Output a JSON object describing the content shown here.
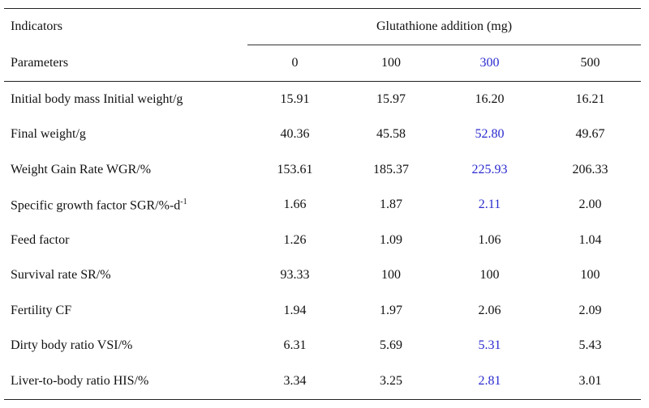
{
  "table": {
    "header": {
      "indicators": "Indicators",
      "group": "Glutathione addition (mg)",
      "parameters": "Parameters",
      "doses": [
        "0",
        "100",
        "300",
        "500"
      ]
    },
    "rows": [
      [
        "Initial body mass Initial weight/g",
        "15.91",
        "15.97",
        "16.20",
        "16.21"
      ],
      [
        "Final weight/g",
        "40.36",
        "45.58",
        "52.80",
        "49.67"
      ],
      [
        "Weight Gain Rate WGR/%",
        "153.61",
        "185.37",
        "225.93",
        "206.33"
      ],
      [
        {
          "text": "Specific growth factor SGR/%-d",
          "sup": "-1"
        },
        "1.66",
        "1.87",
        "2.11",
        "2.00"
      ],
      [
        "Feed factor",
        "1.26",
        "1.09",
        "1.06",
        "1.04"
      ],
      [
        "Survival rate SR/%",
        "93.33",
        "100",
        "100",
        "100"
      ],
      [
        "Fertility CF",
        "1.94",
        "1.97",
        "2.06",
        "2.09"
      ],
      [
        "Dirty body ratio VSI/%",
        "6.31",
        "5.69",
        "5.31",
        "5.43"
      ],
      [
        "Liver-to-body ratio HIS/%",
        "3.34",
        "3.25",
        "2.81",
        "3.01"
      ]
    ]
  }
}
